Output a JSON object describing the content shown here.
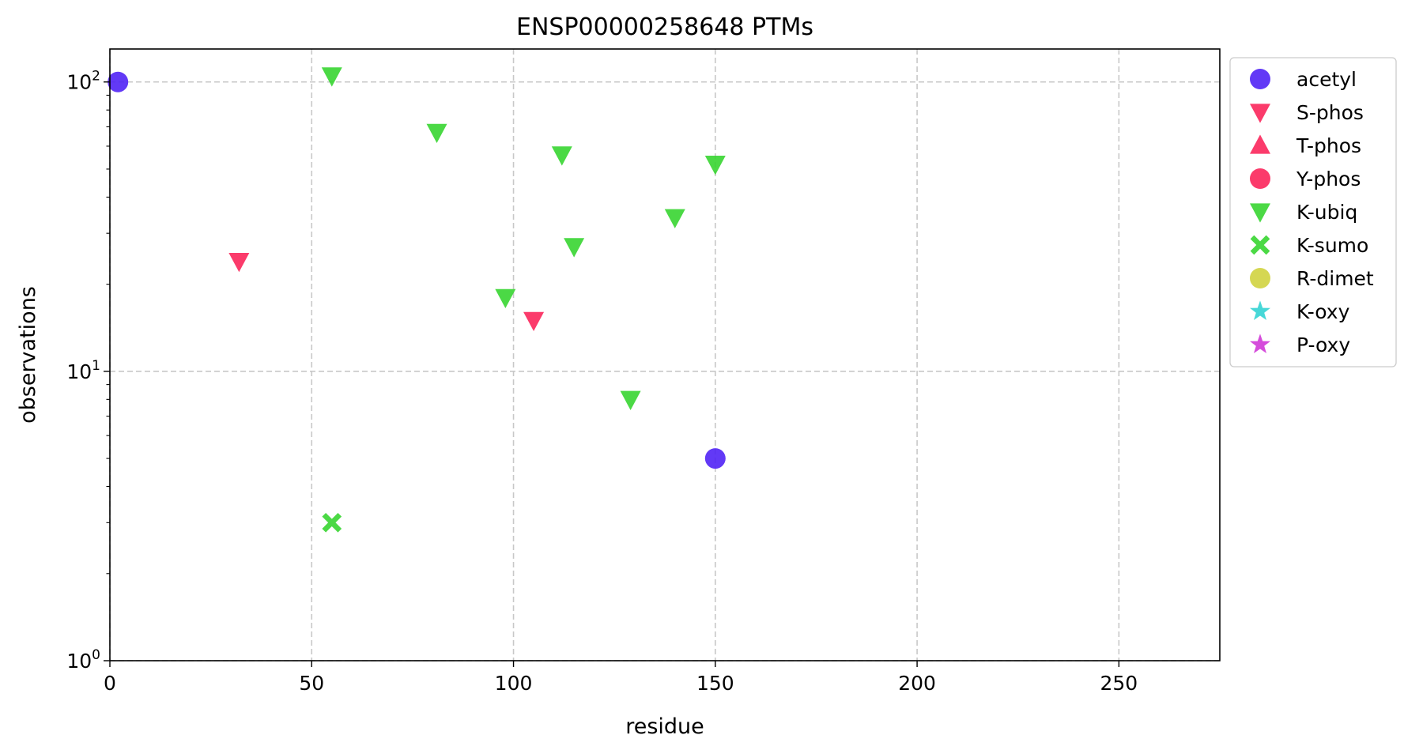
{
  "chart_data": {
    "type": "scatter",
    "title": "ENSP00000258648 PTMs",
    "xlabel": "residue",
    "ylabel": "observations",
    "xlim": [
      0,
      275
    ],
    "ylim": [
      1,
      130
    ],
    "yscale": "log",
    "grid": true,
    "legend_position": "outside-right",
    "x_ticks": [
      {
        "value": 0,
        "label": "0"
      },
      {
        "value": 50,
        "label": "50"
      },
      {
        "value": 100,
        "label": "100"
      },
      {
        "value": 150,
        "label": "150"
      },
      {
        "value": 200,
        "label": "200"
      },
      {
        "value": 250,
        "label": "250"
      }
    ],
    "y_ticks": [
      {
        "value": 1,
        "base": "10",
        "exp": "0"
      },
      {
        "value": 10,
        "base": "10",
        "exp": "1"
      },
      {
        "value": 100,
        "base": "10",
        "exp": "2"
      }
    ],
    "series": [
      {
        "name": "acetyl",
        "marker": "circle",
        "color": "#4c1ef5",
        "points": [
          {
            "x": 2,
            "y": 100
          },
          {
            "x": 150,
            "y": 5
          }
        ]
      },
      {
        "name": "S-phos",
        "marker": "triangle-down",
        "color": "#fb2056",
        "points": [
          {
            "x": 32,
            "y": 24
          },
          {
            "x": 105,
            "y": 15
          }
        ]
      },
      {
        "name": "T-phos",
        "marker": "triangle-up",
        "color": "#fb2056",
        "points": []
      },
      {
        "name": "Y-phos",
        "marker": "circle",
        "color": "#fb2056",
        "points": []
      },
      {
        "name": "K-ubiq",
        "marker": "triangle-down",
        "color": "#32d42b",
        "points": [
          {
            "x": 55,
            "y": 105
          },
          {
            "x": 81,
            "y": 67
          },
          {
            "x": 112,
            "y": 56
          },
          {
            "x": 150,
            "y": 52
          },
          {
            "x": 140,
            "y": 34
          },
          {
            "x": 115,
            "y": 27
          },
          {
            "x": 98,
            "y": 18
          },
          {
            "x": 129,
            "y": 8
          }
        ]
      },
      {
        "name": "K-sumo",
        "marker": "x-filled",
        "color": "#32d42b",
        "points": [
          {
            "x": 55,
            "y": 3
          }
        ]
      },
      {
        "name": "R-dimet",
        "marker": "circle",
        "color": "#cfd23a",
        "points": []
      },
      {
        "name": "K-oxy",
        "marker": "star",
        "color": "#2ed1d1",
        "points": []
      },
      {
        "name": "P-oxy",
        "marker": "star",
        "color": "#cf33d6",
        "points": []
      }
    ]
  }
}
